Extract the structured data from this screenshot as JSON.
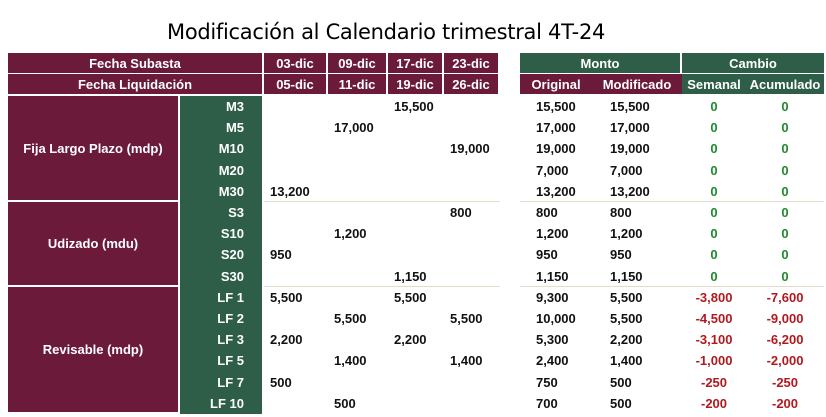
{
  "title": "Modificación al Calendario trimestral 4T-24",
  "header": {
    "fecha_subasta": "Fecha Subasta",
    "fecha_liquidacion": "Fecha Liquidación",
    "subasta_dates": [
      "03-dic",
      "09-dic",
      "17-dic",
      "23-dic"
    ],
    "liquidacion_dates": [
      "05-dic",
      "11-dic",
      "19-dic",
      "26-dic"
    ],
    "monto": "Monto",
    "cambio": "Cambio",
    "original": "Original",
    "modificado": "Modificado",
    "semanal": "Semanal",
    "acumulado": "Acumulado"
  },
  "groups": [
    {
      "label": "Fija Largo Plazo (mdp)",
      "rows": [
        {
          "inst": "M3",
          "d": [
            "",
            "",
            "15,500",
            ""
          ],
          "original": "15,500",
          "modificado": "15,500",
          "semanal": "0",
          "acumulado": "0"
        },
        {
          "inst": "M5",
          "d": [
            "",
            "17,000",
            "",
            ""
          ],
          "original": "17,000",
          "modificado": "17,000",
          "semanal": "0",
          "acumulado": "0"
        },
        {
          "inst": "M10",
          "d": [
            "",
            "",
            "",
            "19,000"
          ],
          "original": "19,000",
          "modificado": "19,000",
          "semanal": "0",
          "acumulado": "0"
        },
        {
          "inst": "M20",
          "d": [
            "",
            "",
            "",
            ""
          ],
          "original": "7,000",
          "modificado": "7,000",
          "semanal": "0",
          "acumulado": "0"
        },
        {
          "inst": "M30",
          "d": [
            "13,200",
            "",
            "",
            ""
          ],
          "original": "13,200",
          "modificado": "13,200",
          "semanal": "0",
          "acumulado": "0"
        }
      ]
    },
    {
      "label": "Udizado (mdu)",
      "rows": [
        {
          "inst": "S3",
          "d": [
            "",
            "",
            "",
            "800"
          ],
          "original": "800",
          "modificado": "800",
          "semanal": "0",
          "acumulado": "0"
        },
        {
          "inst": "S10",
          "d": [
            "",
            "1,200",
            "",
            ""
          ],
          "original": "1,200",
          "modificado": "1,200",
          "semanal": "0",
          "acumulado": "0"
        },
        {
          "inst": "S20",
          "d": [
            "950",
            "",
            "",
            ""
          ],
          "original": "950",
          "modificado": "950",
          "semanal": "0",
          "acumulado": "0"
        },
        {
          "inst": "S30",
          "d": [
            "",
            "",
            "1,150",
            ""
          ],
          "original": "1,150",
          "modificado": "1,150",
          "semanal": "0",
          "acumulado": "0"
        }
      ]
    },
    {
      "label": "Revisable (mdp)",
      "rows": [
        {
          "inst": "LF 1",
          "d": [
            "5,500",
            "",
            "5,500",
            ""
          ],
          "original": "9,300",
          "modificado": "5,500",
          "semanal": "-3,800",
          "acumulado": "-7,600"
        },
        {
          "inst": "LF 2",
          "d": [
            "",
            "5,500",
            "",
            "5,500"
          ],
          "original": "10,000",
          "modificado": "5,500",
          "semanal": "-4,500",
          "acumulado": "-9,000"
        },
        {
          "inst": "LF 3",
          "d": [
            "2,200",
            "",
            "2,200",
            ""
          ],
          "original": "5,300",
          "modificado": "2,200",
          "semanal": "-3,100",
          "acumulado": "-6,200"
        },
        {
          "inst": "LF 5",
          "d": [
            "",
            "1,400",
            "",
            "1,400"
          ],
          "original": "2,400",
          "modificado": "1,400",
          "semanal": "-1,000",
          "acumulado": "-2,000"
        },
        {
          "inst": "LF 7",
          "d": [
            "500",
            "",
            "",
            ""
          ],
          "original": "750",
          "modificado": "500",
          "semanal": "-250",
          "acumulado": "-250"
        },
        {
          "inst": "LF 10",
          "d": [
            "",
            "500",
            "",
            ""
          ],
          "original": "700",
          "modificado": "500",
          "semanal": "-200",
          "acumulado": "-200"
        }
      ]
    }
  ],
  "colors": {
    "maroon": "#6b1a3a",
    "green": "#2e5e48",
    "positive": "#1f8a2e",
    "negative": "#b1191f"
  }
}
